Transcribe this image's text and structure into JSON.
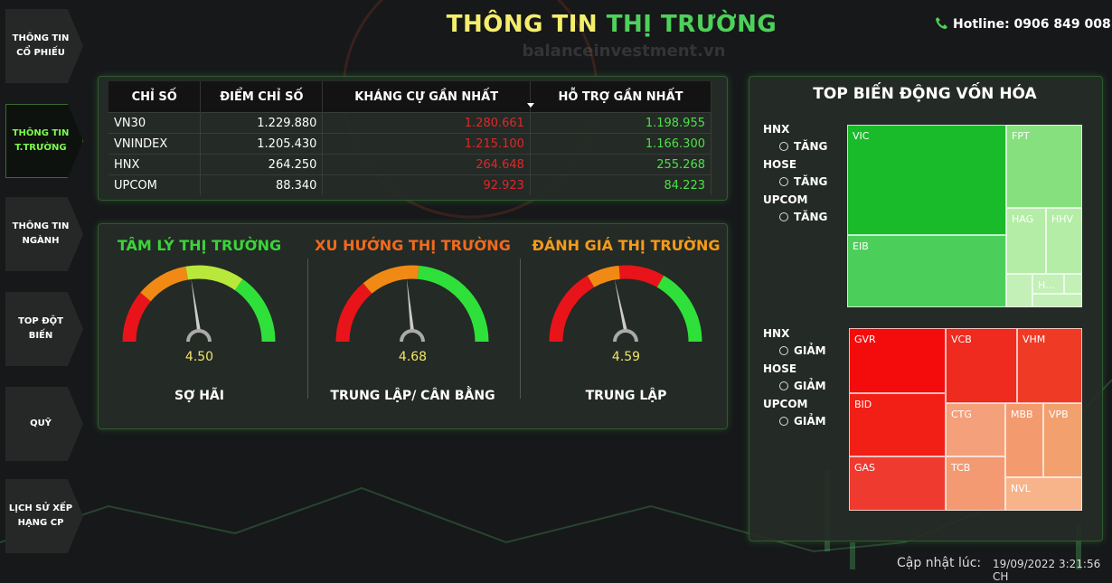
{
  "sidebar": [
    "THÔNG TIN CỔ PHIẾU",
    "THÔNG TIN T.TRƯỜNG",
    "THÔNG TIN NGÀNH",
    "TOP ĐỘT BIẾN",
    "QUỸ",
    "LỊCH SỬ XẾP HẠNG CP"
  ],
  "header": {
    "title_part1": "THÔNG TIN",
    "title_part2": "THỊ TRƯỜNG",
    "watermark": "balanceinvestment.vn",
    "hotline": "Hotline: 0906 849 008"
  },
  "table": {
    "columns": [
      "CHỈ SỐ",
      "ĐIỂM CHỈ SỐ",
      "KHÁNG CỰ GẦN NHẤT",
      "HỖ TRỢ GẦN NHẤT"
    ],
    "rows": [
      [
        "VN30",
        "1.229.880",
        "1.280.661",
        "1.198.955"
      ],
      [
        "VNINDEX",
        "1.205.430",
        "1.215.100",
        "1.166.300"
      ],
      [
        "HNX",
        "264.250",
        "264.648",
        "255.268"
      ],
      [
        "UPCOM",
        "88.340",
        "92.923",
        "84.223"
      ]
    ]
  },
  "gauges": [
    {
      "title": "TÂM LÝ THỊ TRƯỜNG",
      "value": "4.50",
      "label": "SỢ HÃI"
    },
    {
      "title": "XU HƯỚNG THỊ TRƯỜNG",
      "value": "4.68",
      "label": "TRUNG LẬP/ CÂN BẰNG"
    },
    {
      "title": "ĐÁNH GIÁ THỊ TRƯỜNG",
      "value": "4.59",
      "label": "TRUNG LẬP"
    }
  ],
  "treemap": {
    "title": "TOP BIẾN ĐỘNG VỐN HÓA",
    "increase": {
      "markets": [
        {
          "name": "HNX",
          "option": "TĂNG"
        },
        {
          "name": "HOSE",
          "option": "TĂNG"
        },
        {
          "name": "UPCOM",
          "option": "TĂNG"
        }
      ],
      "tiles": [
        "VIC",
        "FPT",
        "EIB",
        "HAG",
        "HHV",
        "H..."
      ]
    },
    "decrease": {
      "markets": [
        {
          "name": "HNX",
          "option": "GIẢM"
        },
        {
          "name": "HOSE",
          "option": "GIẢM"
        },
        {
          "name": "UPCOM",
          "option": "GIẢM"
        }
      ],
      "tiles": [
        "GVR",
        "VCB",
        "VHM",
        "BID",
        "CTG",
        "MBB",
        "VPB",
        "GAS",
        "TCB",
        "NVL"
      ]
    }
  },
  "footer": {
    "label": "Cập nhật lúc:",
    "timestamp": "19/09/2022 3:21:56 CH"
  }
}
